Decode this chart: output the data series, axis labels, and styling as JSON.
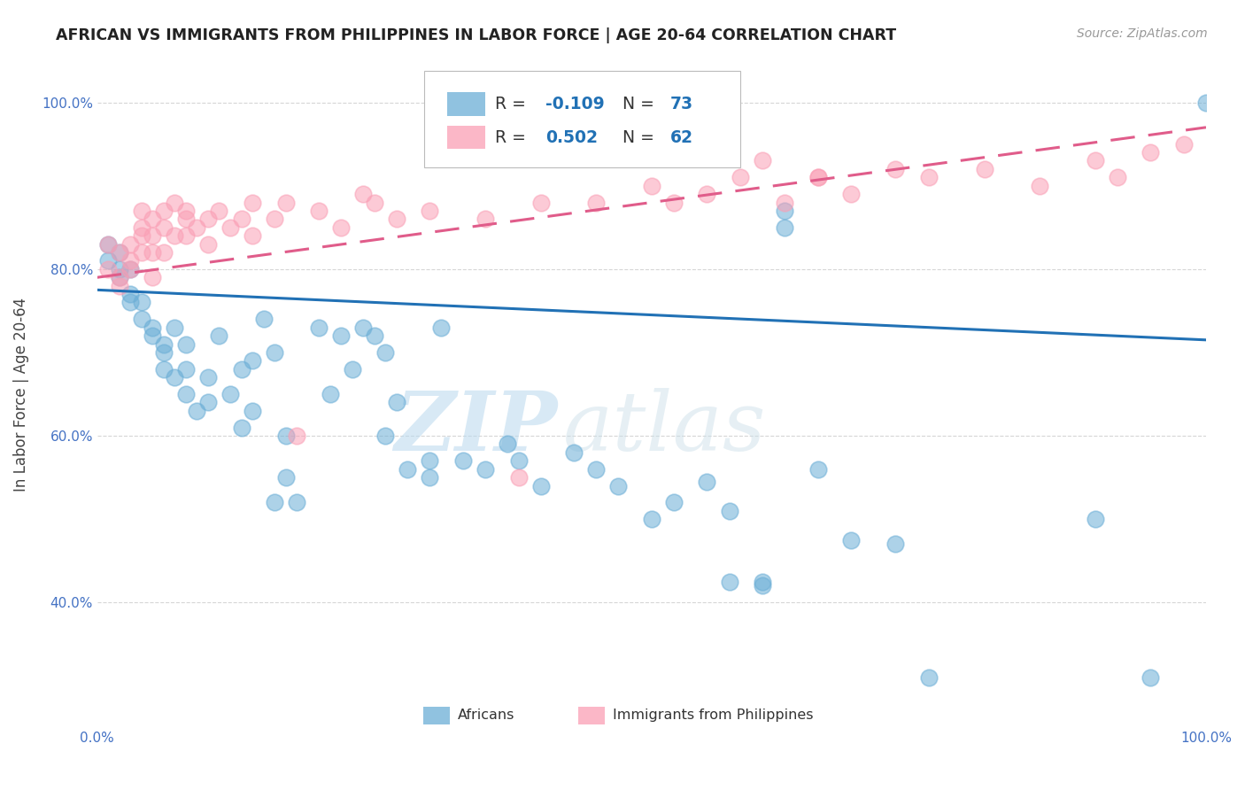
{
  "title": "AFRICAN VS IMMIGRANTS FROM PHILIPPINES IN LABOR FORCE | AGE 20-64 CORRELATION CHART",
  "source": "Source: ZipAtlas.com",
  "ylabel": "In Labor Force | Age 20-64",
  "xlim": [
    0.0,
    1.0
  ],
  "ylim": [
    0.25,
    1.05
  ],
  "yticks": [
    0.4,
    0.6,
    0.8,
    1.0
  ],
  "ytick_labels": [
    "40.0%",
    "60.0%",
    "80.0%",
    "100.0%"
  ],
  "xticks": [
    0.0,
    0.2,
    0.4,
    0.6,
    0.8,
    1.0
  ],
  "grid_color": "#cccccc",
  "background_color": "#ffffff",
  "blue_color": "#6baed6",
  "pink_color": "#fa9fb5",
  "blue_line_color": "#2171b5",
  "pink_line_color": "#e05c8a",
  "legend_r_blue": "-0.109",
  "legend_n_blue": "73",
  "legend_r_pink": "0.502",
  "legend_n_pink": "62",
  "watermark_zip": "ZIP",
  "watermark_atlas": "atlas",
  "blue_x": [
    0.01,
    0.01,
    0.02,
    0.02,
    0.02,
    0.03,
    0.03,
    0.03,
    0.04,
    0.04,
    0.05,
    0.05,
    0.06,
    0.06,
    0.06,
    0.07,
    0.07,
    0.08,
    0.08,
    0.08,
    0.09,
    0.1,
    0.1,
    0.11,
    0.12,
    0.13,
    0.13,
    0.14,
    0.15,
    0.16,
    0.17,
    0.17,
    0.18,
    0.2,
    0.21,
    0.22,
    0.23,
    0.24,
    0.25,
    0.26,
    0.27,
    0.28,
    0.3,
    0.31,
    0.33,
    0.35,
    0.37,
    0.38,
    0.4,
    0.43,
    0.45,
    0.47,
    0.5,
    0.52,
    0.55,
    0.57,
    0.6,
    0.62,
    0.65,
    0.68,
    0.72,
    0.75,
    0.9,
    0.95,
    1.0,
    0.14,
    0.26,
    0.3,
    0.62,
    0.16,
    0.57,
    0.6,
    0.35
  ],
  "blue_y": [
    0.83,
    0.81,
    0.8,
    0.79,
    0.82,
    0.77,
    0.8,
    0.76,
    0.74,
    0.76,
    0.72,
    0.73,
    0.7,
    0.71,
    0.68,
    0.67,
    0.73,
    0.71,
    0.68,
    0.65,
    0.63,
    0.67,
    0.64,
    0.72,
    0.65,
    0.68,
    0.61,
    0.69,
    0.74,
    0.7,
    0.6,
    0.55,
    0.52,
    0.73,
    0.65,
    0.72,
    0.68,
    0.73,
    0.72,
    0.7,
    0.64,
    0.56,
    0.57,
    0.73,
    0.57,
    0.56,
    0.59,
    0.57,
    0.54,
    0.58,
    0.56,
    0.54,
    0.5,
    0.52,
    0.545,
    0.51,
    0.425,
    0.85,
    0.56,
    0.475,
    0.47,
    0.31,
    0.5,
    0.31,
    1.0,
    0.63,
    0.6,
    0.55,
    0.87,
    0.52,
    0.425,
    0.42,
    1.0
  ],
  "pink_x": [
    0.01,
    0.01,
    0.02,
    0.02,
    0.02,
    0.03,
    0.03,
    0.03,
    0.04,
    0.04,
    0.04,
    0.04,
    0.05,
    0.05,
    0.05,
    0.05,
    0.06,
    0.06,
    0.06,
    0.07,
    0.07,
    0.08,
    0.08,
    0.08,
    0.09,
    0.1,
    0.1,
    0.11,
    0.12,
    0.13,
    0.14,
    0.14,
    0.16,
    0.17,
    0.18,
    0.2,
    0.22,
    0.24,
    0.25,
    0.27,
    0.3,
    0.35,
    0.38,
    0.4,
    0.45,
    0.5,
    0.52,
    0.55,
    0.58,
    0.6,
    0.65,
    0.68,
    0.72,
    0.75,
    0.8,
    0.85,
    0.9,
    0.92,
    0.95,
    0.98,
    0.62,
    0.65
  ],
  "pink_y": [
    0.83,
    0.8,
    0.82,
    0.79,
    0.78,
    0.83,
    0.81,
    0.8,
    0.85,
    0.87,
    0.84,
    0.82,
    0.86,
    0.84,
    0.82,
    0.79,
    0.87,
    0.85,
    0.82,
    0.88,
    0.84,
    0.87,
    0.86,
    0.84,
    0.85,
    0.86,
    0.83,
    0.87,
    0.85,
    0.86,
    0.88,
    0.84,
    0.86,
    0.88,
    0.6,
    0.87,
    0.85,
    0.89,
    0.88,
    0.86,
    0.87,
    0.86,
    0.55,
    0.88,
    0.88,
    0.9,
    0.88,
    0.89,
    0.91,
    0.93,
    0.91,
    0.89,
    0.92,
    0.91,
    0.92,
    0.9,
    0.93,
    0.91,
    0.94,
    0.95,
    0.88,
    0.91
  ],
  "blue_line_y_start": 0.775,
  "blue_line_y_end": 0.715,
  "pink_line_y_start": 0.79,
  "pink_line_y_end": 0.97
}
